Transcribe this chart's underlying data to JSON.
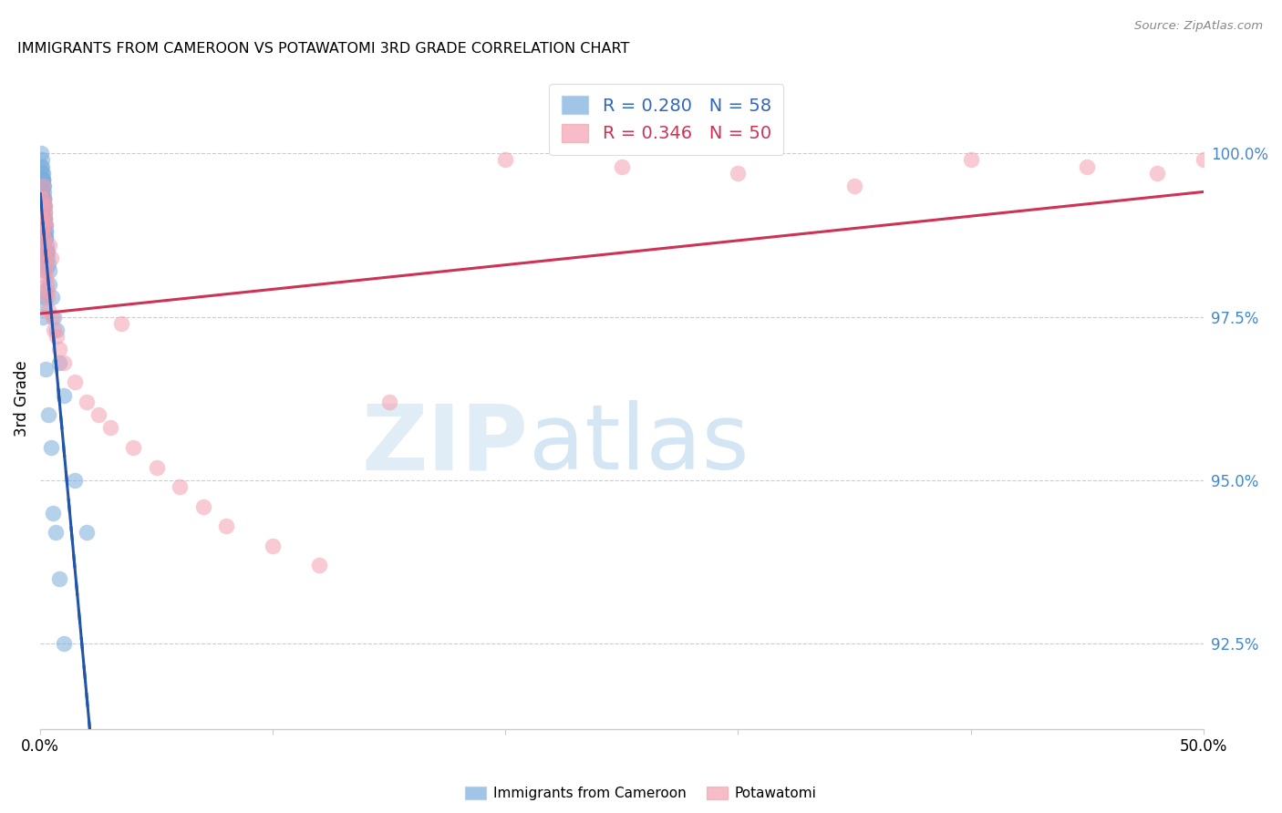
{
  "title": "IMMIGRANTS FROM CAMEROON VS POTAWATOMI 3RD GRADE CORRELATION CHART",
  "source": "Source: ZipAtlas.com",
  "ylabel": "3rd Grade",
  "ylabel_ticks": [
    92.5,
    95.0,
    97.5,
    100.0
  ],
  "ylabel_tick_labels": [
    "92.5%",
    "95.0%",
    "97.5%",
    "100.0%"
  ],
  "xmin": 0.0,
  "xmax": 50.0,
  "ymin": 91.2,
  "ymax": 101.3,
  "blue_R": 0.28,
  "blue_N": 58,
  "pink_R": 0.346,
  "pink_N": 50,
  "blue_color": "#7aaddc",
  "pink_color": "#f4a0b0",
  "blue_edge_color": "#5588bb",
  "pink_edge_color": "#e07090",
  "blue_line_color": "#2255aa",
  "pink_line_color": "#cc3355",
  "blue_scatter_x": [
    0.05,
    0.05,
    0.07,
    0.08,
    0.09,
    0.1,
    0.1,
    0.11,
    0.12,
    0.12,
    0.13,
    0.14,
    0.15,
    0.15,
    0.16,
    0.17,
    0.17,
    0.18,
    0.18,
    0.19,
    0.2,
    0.21,
    0.22,
    0.22,
    0.23,
    0.24,
    0.25,
    0.26,
    0.28,
    0.3,
    0.32,
    0.35,
    0.4,
    0.05,
    0.06,
    0.07,
    0.08,
    0.09,
    0.1,
    0.11,
    0.12,
    0.13,
    0.14,
    0.15,
    0.16,
    0.17,
    0.18,
    0.19,
    0.2,
    0.21,
    0.4,
    0.5,
    0.6,
    0.7,
    0.8,
    1.0,
    1.5,
    2.0
  ],
  "blue_scatter_y": [
    100.0,
    99.8,
    99.9,
    99.8,
    99.7,
    99.7,
    99.6,
    99.6,
    99.5,
    99.6,
    99.5,
    99.5,
    99.4,
    99.3,
    99.3,
    99.3,
    99.2,
    99.2,
    99.1,
    99.0,
    99.0,
    98.9,
    98.9,
    98.8,
    98.8,
    98.7,
    98.7,
    98.5,
    98.6,
    98.5,
    98.4,
    98.3,
    98.2,
    99.5,
    99.4,
    99.3,
    99.2,
    99.1,
    99.0,
    98.5,
    99.0,
    98.8,
    98.7,
    98.5,
    98.4,
    98.3,
    98.2,
    97.9,
    97.8,
    97.7,
    98.0,
    97.8,
    97.5,
    97.3,
    96.8,
    96.3,
    95.0,
    94.2
  ],
  "blue_scatter_y_low": [
    97.5,
    96.7,
    96.0,
    95.5,
    94.5,
    94.2,
    93.5,
    92.5
  ],
  "blue_scatter_x_low": [
    0.1,
    0.25,
    0.35,
    0.45,
    0.55,
    0.65,
    0.8,
    1.0
  ],
  "pink_scatter_x": [
    0.05,
    0.08,
    0.09,
    0.1,
    0.12,
    0.13,
    0.14,
    0.15,
    0.16,
    0.17,
    0.18,
    0.18,
    0.19,
    0.2,
    0.2,
    0.22,
    0.22,
    0.25,
    0.28,
    0.3,
    0.32,
    0.35,
    0.4,
    0.45,
    0.5,
    0.6,
    0.7,
    0.8,
    1.0,
    1.5,
    2.0,
    2.5,
    3.0,
    3.5,
    4.0,
    5.0,
    6.0,
    7.0,
    8.0,
    10.0,
    12.0,
    15.0,
    20.0,
    25.0,
    30.0,
    35.0,
    40.0,
    45.0,
    48.0,
    50.0
  ],
  "pink_scatter_y": [
    99.3,
    99.2,
    99.0,
    98.9,
    98.8,
    99.5,
    98.7,
    99.3,
    98.6,
    98.5,
    98.4,
    99.2,
    99.0,
    98.3,
    99.1,
    98.2,
    98.9,
    98.1,
    98.0,
    97.9,
    97.8,
    97.6,
    98.6,
    98.4,
    97.5,
    97.3,
    97.2,
    97.0,
    96.8,
    96.5,
    96.2,
    96.0,
    95.8,
    97.4,
    95.5,
    95.2,
    94.9,
    94.6,
    94.3,
    94.0,
    93.7,
    96.2,
    99.9,
    99.8,
    99.7,
    99.5,
    99.9,
    99.8,
    99.7,
    99.9
  ],
  "watermark_zip": "ZIP",
  "watermark_atlas": "atlas"
}
